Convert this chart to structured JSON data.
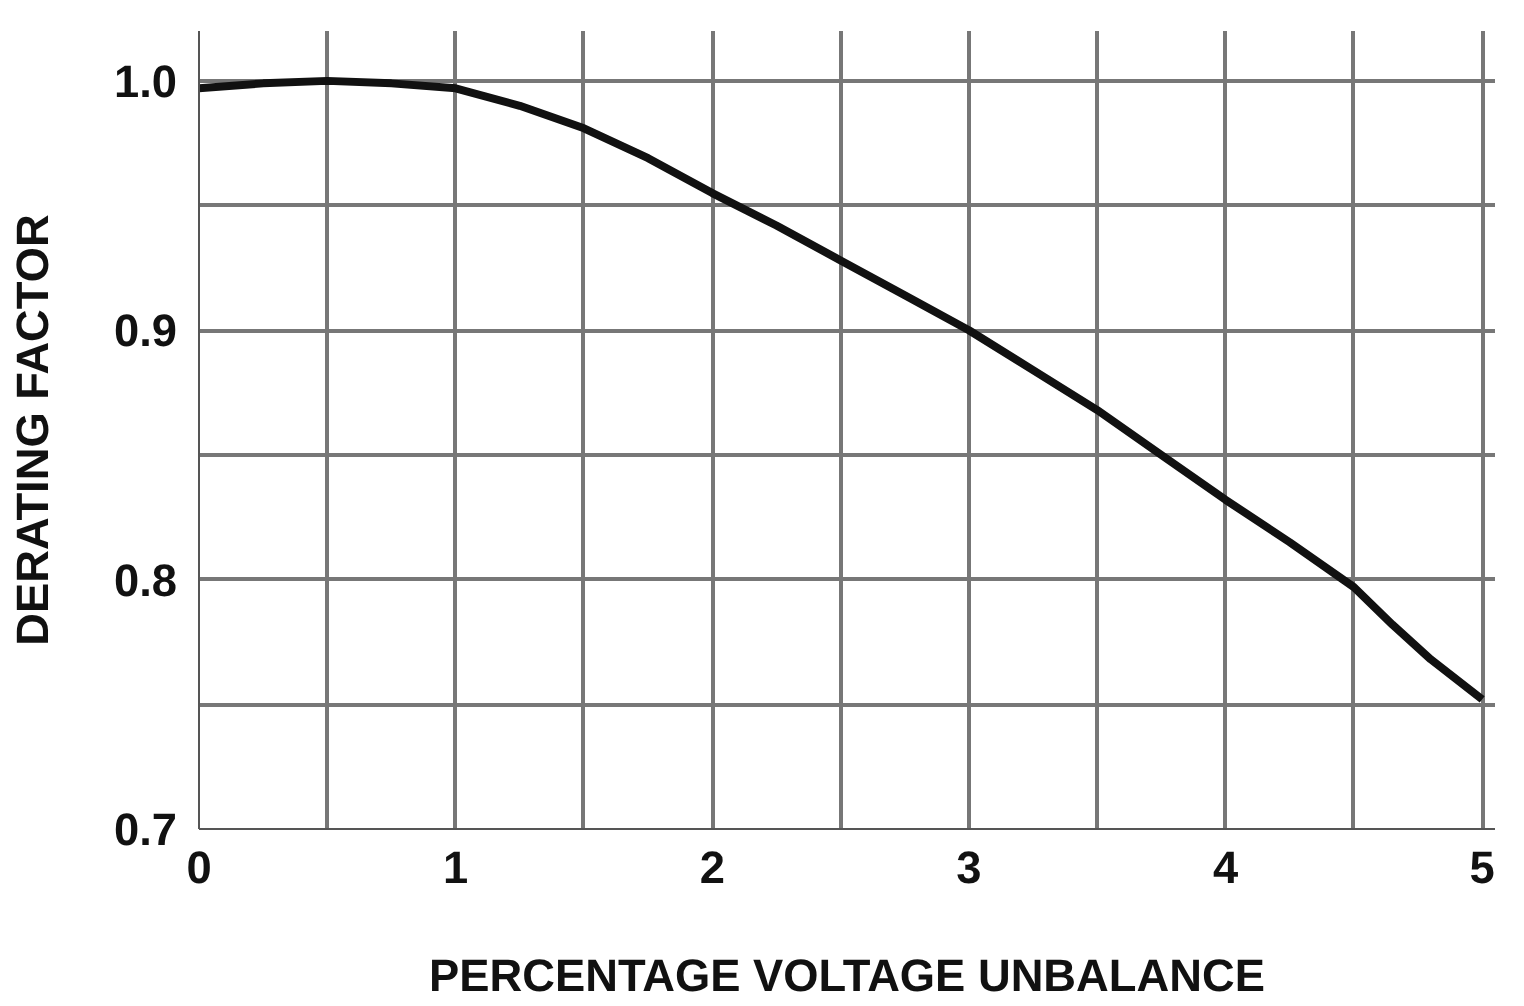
{
  "chart_data": {
    "type": "line",
    "xlabel": "PERCENTAGE VOLTAGE UNBALANCE",
    "ylabel": "DERATING FACTOR",
    "x": [
      0,
      0.25,
      0.5,
      0.75,
      1,
      1.25,
      1.5,
      1.75,
      2,
      2.25,
      2.5,
      2.75,
      3,
      3.25,
      3.5,
      3.75,
      4,
      4.25,
      4.5,
      4.65,
      4.8,
      5
    ],
    "series": [
      {
        "color": "#111111",
        "values": [
          0.997,
          0.999,
          1.0,
          0.999,
          0.997,
          0.99,
          0.981,
          0.969,
          0.955,
          0.942,
          0.928,
          0.914,
          0.9,
          0.884,
          0.868,
          0.85,
          0.832,
          0.815,
          0.797,
          0.782,
          0.768,
          0.752
        ]
      }
    ],
    "xlim": [
      0,
      5.05
    ],
    "ylim": [
      0.7,
      1.02
    ],
    "xticks": [
      0,
      {
        "value": 0.5,
        "label": null
      },
      1,
      {
        "value": 1.5,
        "label": null
      },
      2,
      {
        "value": 2.5,
        "label": null
      },
      3,
      {
        "value": 3.5,
        "label": null
      },
      4,
      {
        "value": 4.5,
        "label": null
      },
      5
    ],
    "yticks": [
      0.7,
      {
        "value": 0.75,
        "label": null
      },
      0.8,
      {
        "value": 0.85,
        "label": null
      },
      0.9,
      {
        "value": 0.95,
        "label": null
      },
      {
        "value": 1.0,
        "label": "1.0"
      }
    ],
    "grid": true,
    "marker": "none",
    "line_style": "solid"
  }
}
